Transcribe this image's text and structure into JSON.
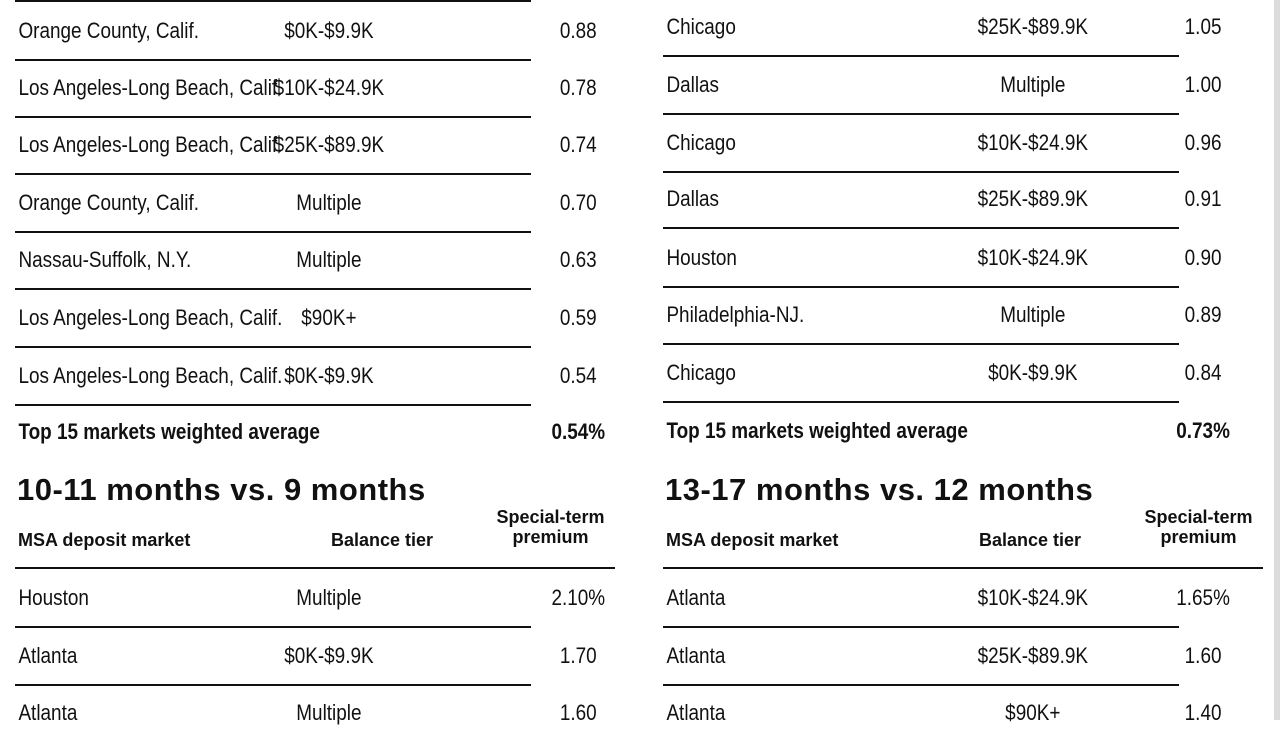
{
  "left_top": {
    "rows": [
      {
        "market": "Orange County, Calif.",
        "tier": "$0K-$9.9K",
        "premium": "0.88"
      },
      {
        "market": "Los Angeles-Long Beach, Calif.",
        "tier": "$10K-$24.9K",
        "premium": "0.78"
      },
      {
        "market": "Los Angeles-Long Beach, Calif.",
        "tier": "$25K-$89.9K",
        "premium": "0.74"
      },
      {
        "market": "Orange County, Calif.",
        "tier": "Multiple",
        "premium": "0.70"
      },
      {
        "market": "Nassau-Suffolk, N.Y.",
        "tier": "Multiple",
        "premium": "0.63"
      },
      {
        "market": "Los Angeles-Long Beach, Calif.",
        "tier": "$90K+",
        "premium": "0.59"
      },
      {
        "market": "Los Angeles-Long Beach, Calif.",
        "tier": "$0K-$9.9K",
        "premium": "0.54"
      }
    ],
    "average": {
      "label": "Top 15 markets weighted average",
      "value": "0.54%"
    }
  },
  "right_top": {
    "rows": [
      {
        "market": "Chicago",
        "tier": "$25K-$89.9K",
        "premium": "1.05"
      },
      {
        "market": "Dallas",
        "tier": "Multiple",
        "premium": "1.00"
      },
      {
        "market": "Chicago",
        "tier": "$10K-$24.9K",
        "premium": "0.96"
      },
      {
        "market": "Dallas",
        "tier": "$25K-$89.9K",
        "premium": "0.91"
      },
      {
        "market": "Houston",
        "tier": "$10K-$24.9K",
        "premium": "0.90"
      },
      {
        "market": "Philadelphia-NJ.",
        "tier": "Multiple",
        "premium": "0.89"
      },
      {
        "market": "Chicago",
        "tier": "$0K-$9.9K",
        "premium": "0.84"
      }
    ],
    "average": {
      "label": "Top 15 markets weighted average",
      "value": "0.73%"
    }
  },
  "left_bottom": {
    "title": "10-11 months vs. 9 months",
    "headers": {
      "market": "MSA deposit market",
      "tier": "Balance tier",
      "premium_line1": "Special-term",
      "premium_line2": "premium"
    },
    "rows": [
      {
        "market": "Houston",
        "tier": "Multiple",
        "premium": "2.10%"
      },
      {
        "market": "Atlanta",
        "tier": "$0K-$9.9K",
        "premium": "1.70"
      },
      {
        "market": "Atlanta",
        "tier": "Multiple",
        "premium": "1.60"
      }
    ]
  },
  "right_bottom": {
    "title": "13-17 months vs. 12 months",
    "headers": {
      "market": "MSA deposit market",
      "tier": "Balance tier",
      "premium_line1": "Special-term",
      "premium_line2": "premium"
    },
    "rows": [
      {
        "market": "Atlanta",
        "tier": "$10K-$24.9K",
        "premium": "1.65%"
      },
      {
        "market": "Atlanta",
        "tier": "$25K-$89.9K",
        "premium": "1.60"
      },
      {
        "market": "Atlanta",
        "tier": "$90K+",
        "premium": "1.40"
      }
    ]
  }
}
